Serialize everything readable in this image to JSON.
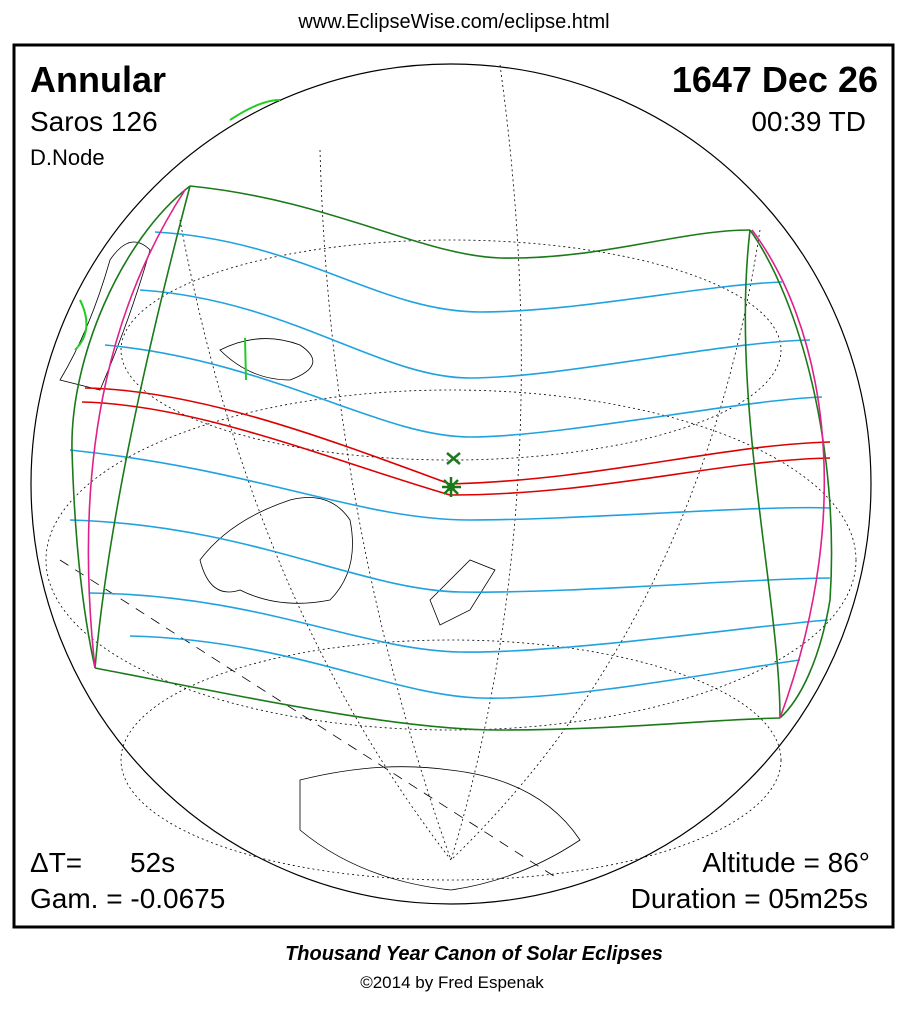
{
  "header": {
    "url": "www.EclipseWise.com/eclipse.html"
  },
  "panel": {
    "eclipse_type": "Annular",
    "saros": "Saros 126",
    "node": "D.Node",
    "date": "1647 Dec 26",
    "time": "00:39 TD",
    "delta_t_label": "ΔT=",
    "delta_t": "52s",
    "gamma": "Gam. = -0.0675",
    "altitude": "Altitude = 86°",
    "duration": "Duration = 05m25s"
  },
  "footer": {
    "title": "Thousand Year Canon of Solar Eclipses",
    "credit": "©2014 by Fred Espenak"
  }
}
